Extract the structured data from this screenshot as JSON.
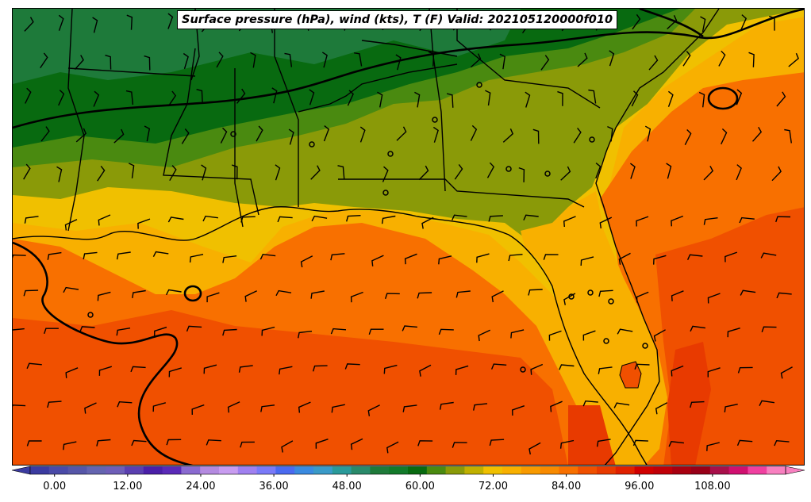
{
  "title": "Surface pressure (hPa), wind (kts), T (F) Valid: 202105120000f010",
  "colorbar": {
    "min": -4,
    "max": 120,
    "step": 3,
    "extend": "both",
    "colors": [
      "#3b3ba0",
      "#4a4aa8",
      "#5656a8",
      "#6464b0",
      "#6e5eb8",
      "#5a3fb0",
      "#4a1fa8",
      "#5a2ab8",
      "#8a6ad0",
      "#b48ae0",
      "#c89cf0",
      "#a080f0",
      "#7a7af8",
      "#4a6af0",
      "#3a8ae0",
      "#3a9ac8",
      "#2a9a9a",
      "#2a8a6a",
      "#1e7a3a",
      "#127a2a",
      "#086a10",
      "#4a8a10",
      "#8a9a08",
      "#c0b000",
      "#f0c000",
      "#f8b000",
      "#f89a00",
      "#f88a00",
      "#f87000",
      "#f05000",
      "#e83a00",
      "#e02000",
      "#d00000",
      "#c00008",
      "#a80010",
      "#980018",
      "#a8104a",
      "#d01070",
      "#f040a0",
      "#f880c0"
    ],
    "ticks": [
      "0.00",
      "12.00",
      "24.00",
      "36.00",
      "48.00",
      "60.00",
      "72.00",
      "84.00",
      "96.00",
      "108.00"
    ]
  }
}
